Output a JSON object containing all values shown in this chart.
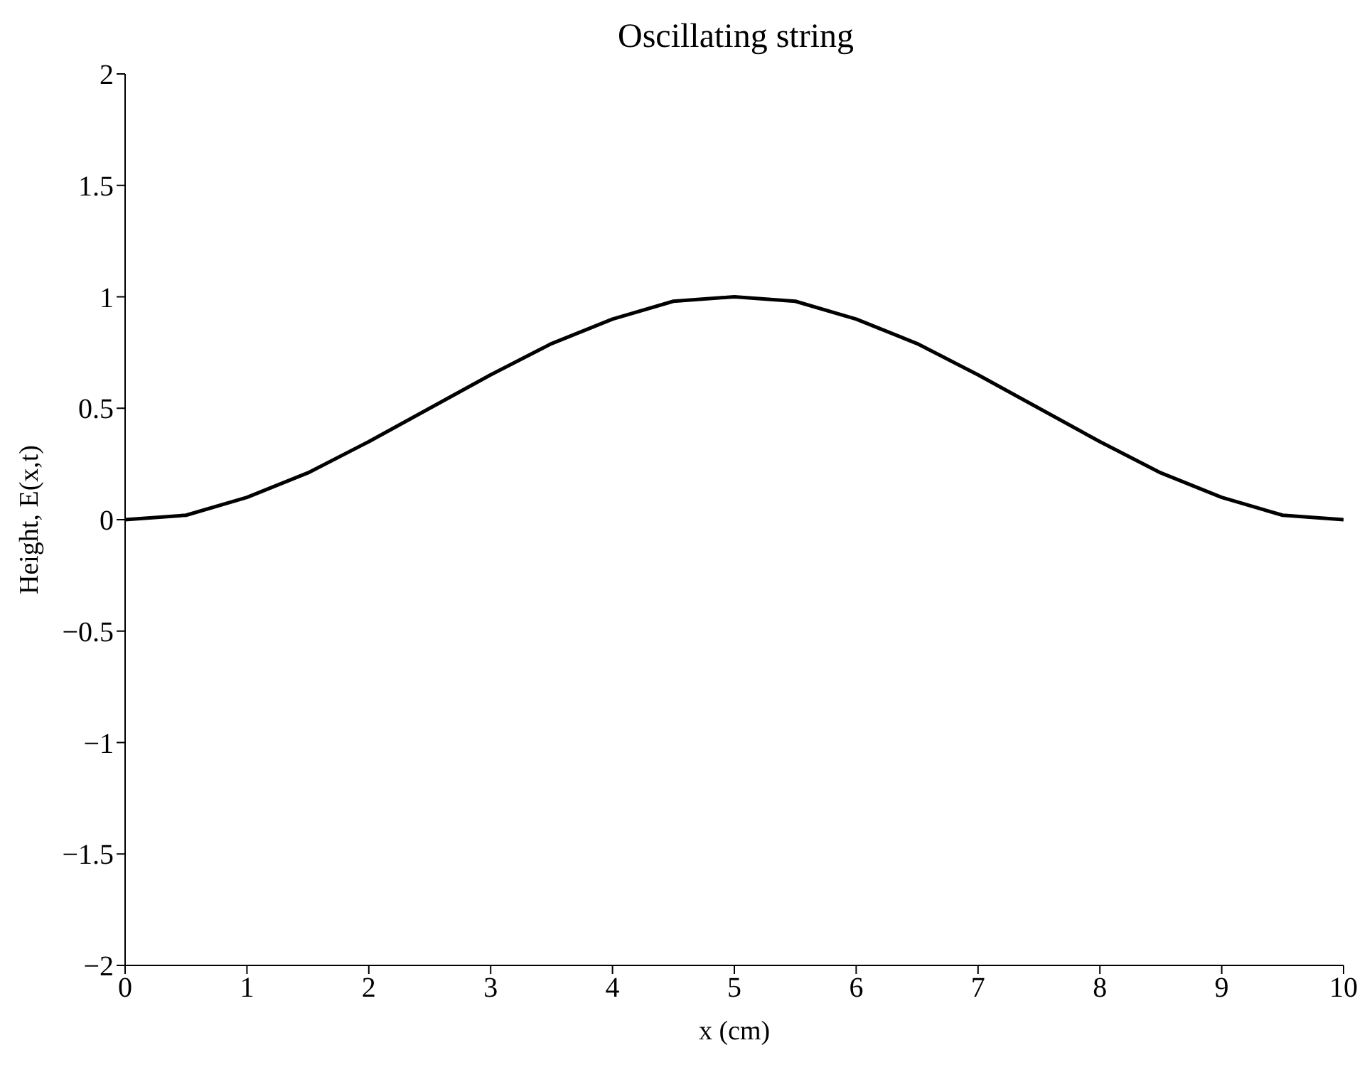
{
  "chart_data": {
    "type": "line",
    "title": "Oscillating string",
    "xlabel": "x (cm)",
    "ylabel": "Height, E(x,t)",
    "x": [
      0,
      0.5,
      1,
      1.5,
      2,
      2.5,
      3,
      3.5,
      4,
      4.5,
      5,
      5.5,
      6,
      6.5,
      7,
      7.5,
      8,
      8.5,
      9,
      9.5,
      10
    ],
    "series": [
      {
        "color": "#000000",
        "values": [
          0,
          0.02,
          0.1,
          0.21,
          0.35,
          0.5,
          0.65,
          0.79,
          0.9,
          0.98,
          1,
          0.98,
          0.9,
          0.79,
          0.65,
          0.5,
          0.35,
          0.21,
          0.1,
          0.02,
          0
        ]
      }
    ],
    "xlim": [
      0,
      10
    ],
    "xticks": [
      0,
      1,
      2,
      3,
      4,
      5,
      6,
      7,
      8,
      9,
      10
    ],
    "ylim": [
      -2,
      2
    ],
    "yticks": [
      {
        "value": -2,
        "label": "−2"
      },
      {
        "value": -1.5,
        "label": "−1.5"
      },
      {
        "value": -1,
        "label": "−1"
      },
      {
        "value": -0.5,
        "label": "−0.5"
      },
      0,
      0.5,
      1,
      1.5,
      2
    ],
    "grid": false,
    "legend": false,
    "marker": "none",
    "line_style": "solid"
  }
}
